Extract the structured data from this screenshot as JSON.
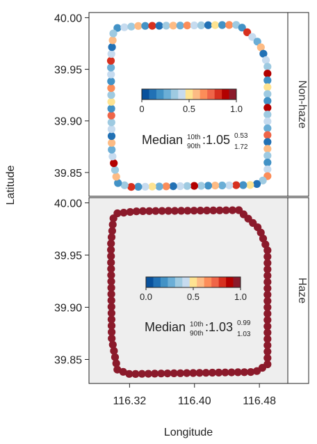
{
  "chart_data": {
    "type": "scatter",
    "xlabel": "Longitude",
    "ylabel": "Latitude",
    "xlim": [
      116.27,
      116.515
    ],
    "ylim": [
      39.827,
      40.005
    ],
    "xticks": [
      "116.32",
      "116.40",
      "116.48"
    ],
    "yticks": [
      "40.00",
      "39.95",
      "39.90",
      "39.85"
    ],
    "colorscale": {
      "colors": [
        "#08519c",
        "#2171b5",
        "#4292c6",
        "#6baed6",
        "#9ecae1",
        "#c6dbef",
        "#fee391",
        "#fdbb84",
        "#fc8d59",
        "#ef6548",
        "#d7301f",
        "#b30000",
        "#8b1a2b"
      ]
    },
    "panels": [
      {
        "strip": "Non-haze",
        "legend_ticks": [
          "0",
          "0.5",
          "1.0"
        ],
        "annotation": {
          "prefix": "Median",
          "sub_top": "10th",
          "sub_bottom": "90th",
          "value": ":1.05",
          "sup": "0.53",
          "sub": "1.72"
        },
        "values": [
          0.15,
          0.45,
          0.3,
          0.6,
          0.2,
          0.85,
          0.1,
          0.35,
          0.55,
          0.25,
          0.7,
          0.4,
          0.3,
          0.05,
          0.5,
          0.2,
          0.65,
          0.35,
          0.15,
          0.8,
          0.45,
          0.25,
          0.6,
          0.1,
          0.4,
          0.3,
          0.95,
          0.2,
          0.5,
          0.35,
          0.15,
          0.9,
          0.3,
          0.45,
          0.25,
          0.75,
          0.1,
          0.55,
          0.35,
          0.2,
          0.4,
          0.65,
          0.3,
          0.05,
          0.5,
          0.2,
          0.85,
          0.4,
          0.25,
          0.6,
          0.15,
          0.35,
          0.95,
          0.3,
          0.45,
          0.1,
          0.7,
          0.25,
          0.5,
          0.4,
          0.2,
          0.8,
          0.35,
          0.15,
          0.55,
          0.3,
          0.9,
          0.45,
          0.25,
          0.6,
          0.1,
          0.4,
          0.3,
          0.75,
          0.2,
          0.5,
          0.35,
          0.65,
          0.15,
          0.45,
          0.25,
          0.85,
          0.4,
          0.1,
          0.55,
          0.3
        ]
      },
      {
        "strip": "Haze",
        "legend_ticks": [
          "0.0",
          "0.5",
          "1.0"
        ],
        "annotation": {
          "prefix": "Median",
          "sub_top": "10th",
          "sub_bottom": "90th",
          "value": ":1.03",
          "sup": "0.99",
          "sub": "1.03"
        },
        "values": [
          1,
          1,
          1,
          1,
          1,
          1,
          1,
          1,
          1,
          1,
          1,
          1,
          1,
          1,
          1,
          1,
          1,
          1,
          1,
          1,
          1,
          1,
          1,
          1,
          1,
          1,
          1,
          1,
          1,
          1,
          1,
          1,
          1,
          1,
          1,
          1,
          1,
          1,
          1,
          1,
          1,
          1,
          1,
          1,
          1,
          1,
          1,
          1,
          1,
          1,
          1,
          1,
          1,
          1,
          1,
          1,
          1,
          1,
          1,
          1,
          1,
          1,
          1,
          1,
          1,
          1,
          1,
          1,
          1,
          1,
          1,
          1,
          1,
          1,
          1,
          1,
          1,
          1,
          1,
          1,
          1,
          1,
          1,
          1,
          1,
          1,
          1,
          1,
          1,
          1,
          1,
          1,
          1,
          1
        ]
      }
    ]
  }
}
